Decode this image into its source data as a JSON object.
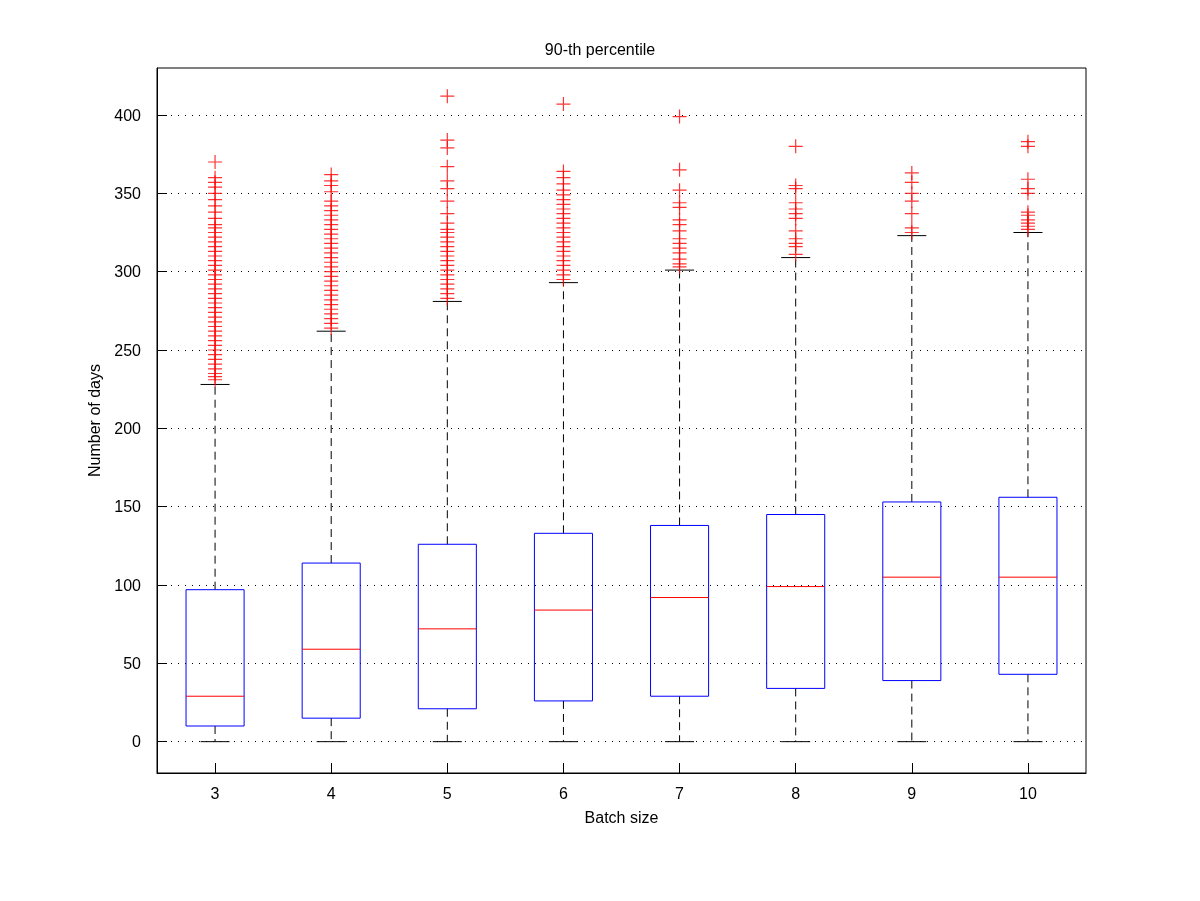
{
  "chart_data": {
    "type": "box",
    "title": "90-th percentile",
    "xlabel": "Batch size",
    "ylabel": "Number of days",
    "categories": [
      "3",
      "4",
      "5",
      "6",
      "7",
      "8",
      "9",
      "10"
    ],
    "ylim": [
      -20,
      430
    ],
    "yticks": [
      0,
      50,
      100,
      150,
      200,
      250,
      300,
      350,
      400
    ],
    "grid": "y",
    "marker": "cross",
    "series": [
      {
        "color": "#0000ff",
        "boxes": [
          {
            "low": 0,
            "q1": 10,
            "median": 29,
            "q3": 97,
            "high": 228,
            "outliers": [
              231,
              233,
              235,
              238,
              241,
              244,
              247,
              250,
              253,
              256,
              259,
              262,
              265,
              268,
              271,
              274,
              277,
              280,
              283,
              286,
              289,
              292,
              295,
              298,
              301,
              304,
              307,
              310,
              313,
              316,
              319,
              322,
              325,
              328,
              330,
              334,
              338,
              342,
              346,
              350,
              354,
              357,
              360,
              370
            ]
          },
          {
            "low": 0,
            "q1": 15,
            "median": 59,
            "q3": 114,
            "high": 262,
            "outliers": [
              264,
              267,
              270,
              273,
              276,
              279,
              282,
              285,
              288,
              291,
              294,
              297,
              300,
              303,
              306,
              309,
              312,
              315,
              318,
              321,
              324,
              327,
              330,
              333,
              336,
              339,
              342,
              345,
              351,
              355,
              358,
              362
            ]
          },
          {
            "low": 0,
            "q1": 21,
            "median": 72,
            "q3": 126,
            "high": 281,
            "outliers": [
              283,
              286,
              289,
              292,
              295,
              298,
              301,
              304,
              307,
              310,
              313,
              316,
              319,
              322,
              325,
              327,
              331,
              337,
              345,
              353,
              358,
              367,
              379,
              384,
              412
            ]
          },
          {
            "low": 0,
            "q1": 26,
            "median": 84,
            "q3": 133,
            "high": 293,
            "outliers": [
              295,
              298,
              301,
              304,
              307,
              310,
              313,
              316,
              319,
              322,
              325,
              328,
              331,
              334,
              337,
              340,
              343,
              346,
              349,
              352,
              356,
              360,
              364,
              407
            ]
          },
          {
            "low": 0,
            "q1": 29,
            "median": 92,
            "q3": 138,
            "high": 301,
            "outliers": [
              303,
              305,
              308,
              312,
              315,
              318,
              321,
              326,
              330,
              333,
              341,
              344,
              352,
              365,
              399
            ]
          },
          {
            "low": 0,
            "q1": 34,
            "median": 99,
            "q3": 145,
            "high": 309,
            "outliers": [
              311,
              316,
              318,
              321,
              326,
              334,
              337,
              340,
              344,
              353,
              355,
              380
            ]
          },
          {
            "low": 0,
            "q1": 39,
            "median": 105,
            "q3": 153,
            "high": 323,
            "outliers": [
              325,
              328,
              337,
              345,
              350,
              357,
              363
            ]
          },
          {
            "low": 0,
            "q1": 43,
            "median": 105,
            "q3": 156,
            "high": 325,
            "outliers": [
              327,
              329,
              331,
              333,
              336,
              338,
              350,
              353,
              359,
              380,
              383
            ]
          }
        ]
      }
    ]
  }
}
